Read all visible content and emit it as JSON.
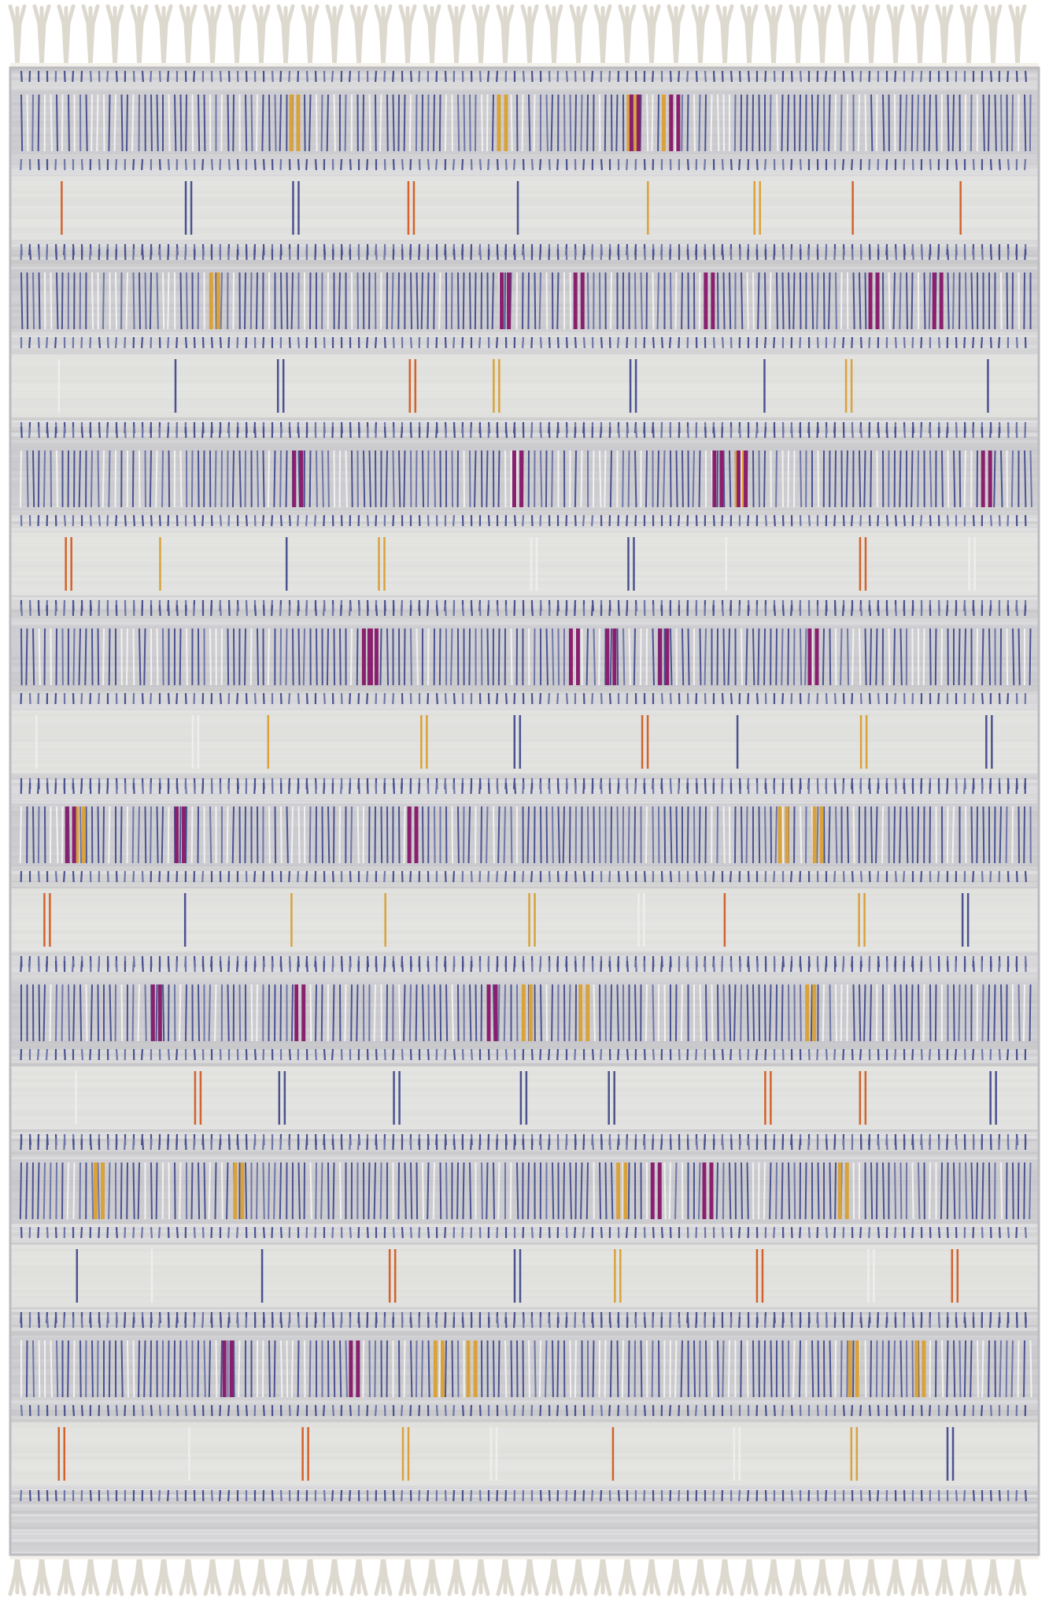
{
  "image": {
    "subject": "rug",
    "background_color": "#ffffff",
    "fringe_color": "#f4f1ea",
    "body_base_color": "#d4d4d6",
    "light_band_color": "#e6e5e2",
    "line_color_primary": "#4a5290",
    "line_color_secondary": "#6e76a8",
    "accent_colors": {
      "magenta": "#8a1f6e",
      "mustard": "#d9a23a",
      "orange": "#d4622a",
      "pale": "#eeeeee"
    },
    "dense_band_count": 8,
    "light_band_count": 8
  }
}
